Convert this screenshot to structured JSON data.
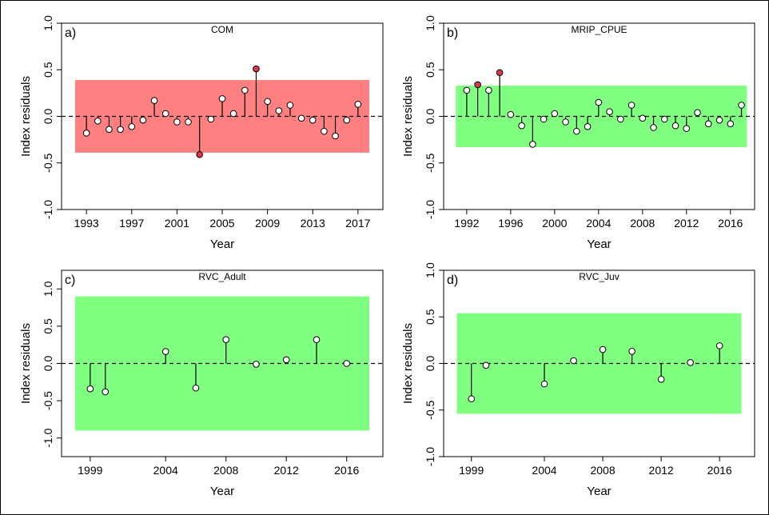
{
  "figure": {
    "colors": {
      "band_red": "#ff8080",
      "band_green": "#80ff80",
      "point_fill": "#ffffff",
      "point_outlier": "#d9384c",
      "stem": "#000000"
    }
  },
  "chart_data": [
    {
      "type": "scatter",
      "panel_label": "a)",
      "title": "COM",
      "xlabel": "Year",
      "ylabel": "Index residuals",
      "xlim": [
        1990.8,
        2019.2
      ],
      "ylim": [
        -1.0,
        1.0
      ],
      "xticks": [
        1993,
        1997,
        2001,
        2005,
        2009,
        2013,
        2017
      ],
      "yticks": [
        -1.0,
        -0.5,
        0.0,
        0.5,
        1.0
      ],
      "ytick_labels": [
        "-1.0",
        "-0.5",
        "0.0",
        "0.5",
        "1.0"
      ],
      "band": {
        "low": -0.39,
        "high": 0.39,
        "color": "#ff8080",
        "xrange": [
          1992,
          2018
        ]
      },
      "points": [
        {
          "x": 1993,
          "y": -0.18
        },
        {
          "x": 1994,
          "y": -0.05
        },
        {
          "x": 1995,
          "y": -0.14
        },
        {
          "x": 1996,
          "y": -0.14
        },
        {
          "x": 1997,
          "y": -0.11
        },
        {
          "x": 1998,
          "y": -0.04
        },
        {
          "x": 1999,
          "y": 0.17
        },
        {
          "x": 2000,
          "y": 0.03
        },
        {
          "x": 2001,
          "y": -0.06
        },
        {
          "x": 2002,
          "y": -0.06
        },
        {
          "x": 2003,
          "y": -0.41,
          "outlier": true
        },
        {
          "x": 2004,
          "y": -0.03
        },
        {
          "x": 2005,
          "y": 0.19
        },
        {
          "x": 2006,
          "y": 0.03
        },
        {
          "x": 2007,
          "y": 0.28
        },
        {
          "x": 2008,
          "y": 0.51,
          "outlier": true
        },
        {
          "x": 2009,
          "y": 0.16
        },
        {
          "x": 2010,
          "y": 0.06
        },
        {
          "x": 2011,
          "y": 0.12
        },
        {
          "x": 2012,
          "y": -0.02
        },
        {
          "x": 2013,
          "y": -0.04
        },
        {
          "x": 2014,
          "y": -0.16
        },
        {
          "x": 2015,
          "y": -0.21
        },
        {
          "x": 2016,
          "y": -0.04
        },
        {
          "x": 2017,
          "y": 0.13
        }
      ]
    },
    {
      "type": "scatter",
      "panel_label": "b)",
      "title": "MRIP_CPUE",
      "xlabel": "Year",
      "ylabel": "Index residuals",
      "xlim": [
        1989.9,
        2018.2
      ],
      "ylim": [
        -1.0,
        1.0
      ],
      "xticks": [
        1992,
        1996,
        2000,
        2004,
        2008,
        2012,
        2016
      ],
      "yticks": [
        -1.0,
        -0.5,
        0.0,
        0.5,
        1.0
      ],
      "ytick_labels": [
        "-1.0",
        "-0.5",
        "0.0",
        "0.5",
        "1.0"
      ],
      "band": {
        "low": -0.33,
        "high": 0.33,
        "color": "#80ff80",
        "xrange": [
          1991,
          2017.5
        ]
      },
      "points": [
        {
          "x": 1992,
          "y": 0.28
        },
        {
          "x": 1993,
          "y": 0.34,
          "outlier": true
        },
        {
          "x": 1994,
          "y": 0.28
        },
        {
          "x": 1995,
          "y": 0.47,
          "outlier": true
        },
        {
          "x": 1996,
          "y": 0.02
        },
        {
          "x": 1997,
          "y": -0.1
        },
        {
          "x": 1998,
          "y": -0.3
        },
        {
          "x": 1999,
          "y": -0.03
        },
        {
          "x": 2000,
          "y": 0.03
        },
        {
          "x": 2001,
          "y": -0.06
        },
        {
          "x": 2002,
          "y": -0.16
        },
        {
          "x": 2003,
          "y": -0.11
        },
        {
          "x": 2004,
          "y": 0.15
        },
        {
          "x": 2005,
          "y": 0.05
        },
        {
          "x": 2006,
          "y": -0.03
        },
        {
          "x": 2007,
          "y": 0.12
        },
        {
          "x": 2008,
          "y": -0.02
        },
        {
          "x": 2009,
          "y": -0.12
        },
        {
          "x": 2010,
          "y": -0.03
        },
        {
          "x": 2011,
          "y": -0.1
        },
        {
          "x": 2012,
          "y": -0.13
        },
        {
          "x": 2013,
          "y": 0.04
        },
        {
          "x": 2014,
          "y": -0.08
        },
        {
          "x": 2015,
          "y": -0.04
        },
        {
          "x": 2016,
          "y": -0.08
        },
        {
          "x": 2017,
          "y": 0.12
        }
      ]
    },
    {
      "type": "scatter",
      "panel_label": "c)",
      "title": "RVC_Adult",
      "xlabel": "Year",
      "ylabel": "Index residuals",
      "xlim": [
        1997.1,
        2018.4
      ],
      "ylim": [
        -1.25,
        1.25
      ],
      "xticks": [
        1999,
        2004,
        2008,
        2012,
        2016
      ],
      "yticks": [
        -1.0,
        -0.5,
        0.0,
        0.5,
        1.0
      ],
      "ytick_labels": [
        "-1.0",
        "-0.5",
        "0.0",
        "0.5",
        "1.0"
      ],
      "band": {
        "low": -0.9,
        "high": 0.9,
        "color": "#80ff80",
        "xrange": [
          1998,
          2017.5
        ]
      },
      "points": [
        {
          "x": 1999,
          "y": -0.34
        },
        {
          "x": 2000,
          "y": -0.38
        },
        {
          "x": 2004,
          "y": 0.16
        },
        {
          "x": 2006,
          "y": -0.33
        },
        {
          "x": 2008,
          "y": 0.32
        },
        {
          "x": 2010,
          "y": -0.01
        },
        {
          "x": 2012,
          "y": 0.05
        },
        {
          "x": 2014,
          "y": 0.32
        },
        {
          "x": 2016,
          "y": 0.0
        }
      ]
    },
    {
      "type": "scatter",
      "panel_label": "d)",
      "title": "RVC_Juv",
      "xlabel": "Year",
      "ylabel": "Index residuals",
      "xlim": [
        1997.1,
        2018.4
      ],
      "ylim": [
        -1.0,
        1.0
      ],
      "xticks": [
        1999,
        2004,
        2008,
        2012,
        2016
      ],
      "yticks": [
        -1.0,
        -0.5,
        0.0,
        0.5,
        1.0
      ],
      "ytick_labels": [
        "-1.0",
        "-0.5",
        "0.0",
        "0.5",
        "1.0"
      ],
      "band": {
        "low": -0.54,
        "high": 0.54,
        "color": "#80ff80",
        "xrange": [
          1998,
          2017.5
        ]
      },
      "points": [
        {
          "x": 1999,
          "y": -0.38
        },
        {
          "x": 2000,
          "y": -0.02
        },
        {
          "x": 2004,
          "y": -0.22
        },
        {
          "x": 2006,
          "y": 0.03
        },
        {
          "x": 2008,
          "y": 0.15
        },
        {
          "x": 2010,
          "y": 0.13
        },
        {
          "x": 2012,
          "y": -0.17
        },
        {
          "x": 2014,
          "y": 0.01
        },
        {
          "x": 2016,
          "y": 0.19
        }
      ]
    }
  ]
}
